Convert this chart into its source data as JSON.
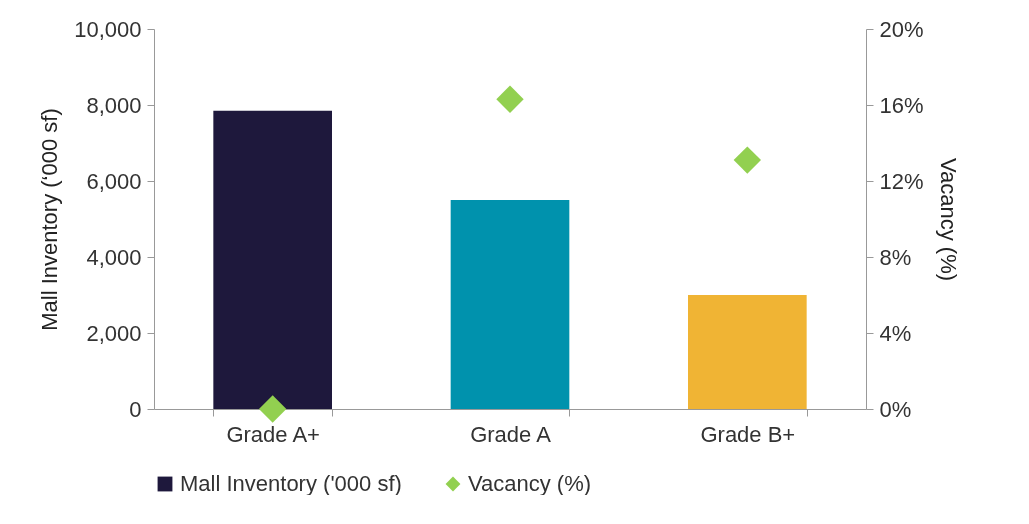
{
  "chart_data": {
    "type": "bar",
    "categories": [
      "Grade A+",
      "Grade A",
      "Grade B+"
    ],
    "ylabel": "Mall Inventory (‘000 sf)",
    "y2label": "Vacancy (%)",
    "ylim": [
      0,
      10000
    ],
    "yticks": [
      {
        "value": 0,
        "label": "0"
      },
      {
        "value": 2000,
        "label": "2,000"
      },
      {
        "value": 4000,
        "label": "4,000"
      },
      {
        "value": 6000,
        "label": "6,000"
      },
      {
        "value": 8000,
        "label": "8,000"
      },
      {
        "value": 10000,
        "label": "10,000"
      }
    ],
    "y2lim": [
      0,
      20
    ],
    "y2ticks": [
      {
        "value": 0,
        "label": "0%"
      },
      {
        "value": 4,
        "label": "4%"
      },
      {
        "value": 8,
        "label": "8%"
      },
      {
        "value": 12,
        "label": "12%"
      },
      {
        "value": 16,
        "label": "16%"
      },
      {
        "value": 20,
        "label": "20%"
      }
    ],
    "legend": "bottom",
    "marker": "diamond",
    "series": [
      {
        "name": "Mall Inventory ('000 sf)",
        "color": "#1e183c",
        "colors": [
          "#1e183c",
          "#0092ad",
          "#f0b434"
        ],
        "values": [
          7850,
          5500,
          3000
        ]
      },
      {
        "name": "Vacancy (%)",
        "type": "scatter",
        "axis": "y2",
        "color": "#92d050",
        "values": [
          0,
          16.3,
          13.1
        ]
      }
    ]
  }
}
